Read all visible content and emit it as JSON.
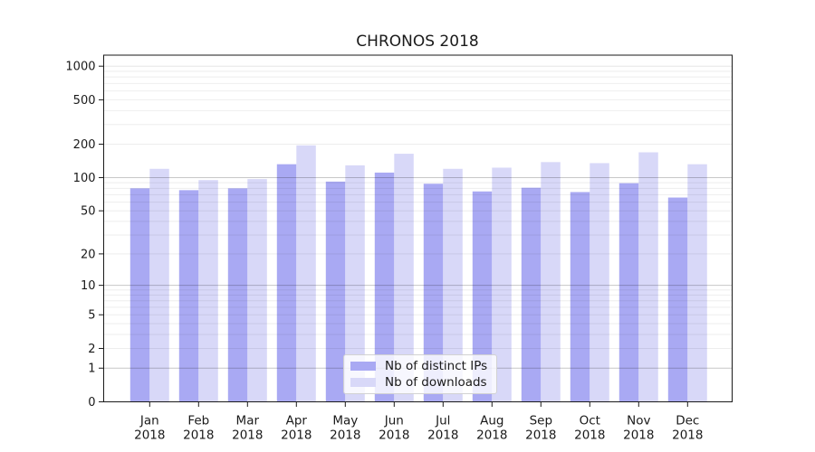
{
  "chart_data": {
    "type": "bar",
    "title": "CHRONOS 2018",
    "categories": [
      "Jan 2018",
      "Feb 2018",
      "Mar 2018",
      "Apr 2018",
      "May 2018",
      "Jun 2018",
      "Jul 2018",
      "Aug 2018",
      "Sep 2018",
      "Oct 2018",
      "Nov 2018",
      "Dec 2018"
    ],
    "category_top_lines": [
      "Jan",
      "Feb",
      "Mar",
      "Apr",
      "May",
      "Jun",
      "Jul",
      "Aug",
      "Sep",
      "Oct",
      "Nov",
      "Dec"
    ],
    "category_bottom_line": "2018",
    "series": [
      {
        "name": "Nb of distinct IPs",
        "color": "#a9a9f3",
        "values": [
          80,
          77,
          80,
          132,
          92,
          111,
          88,
          75,
          81,
          74,
          89,
          66
        ]
      },
      {
        "name": "Nb of downloads",
        "color": "#d8d8f8",
        "values": [
          120,
          95,
          97,
          195,
          129,
          164,
          120,
          123,
          138,
          135,
          169,
          132
        ]
      }
    ],
    "xlabel": "",
    "ylabel": "",
    "yscale": "symlog",
    "yticks": [
      0,
      1,
      2,
      5,
      10,
      20,
      50,
      100,
      200,
      500,
      1000
    ],
    "ylim": [
      0,
      1255
    ],
    "grid": "horizontal, minor lines at 2-9 of each decade, drawn over bars",
    "legend_position": "bottom-center"
  },
  "colors": {
    "axis": "#1a1a1a",
    "tick_text": "#1a1a1a",
    "grid_major": "rgba(0,0,0,0.22)",
    "grid_top_decade": "rgba(0,0,0,0.10)",
    "grid_minor": "rgba(0,0,0,0.07)",
    "background": "#ffffff"
  }
}
